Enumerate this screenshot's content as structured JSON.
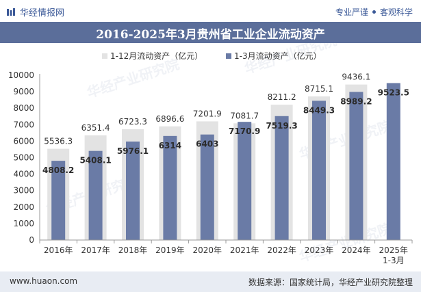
{
  "header": {
    "brand": "华经情报网",
    "tag1": "专业严谨",
    "tag2": "客观科学"
  },
  "watermark": "华经产业研究院",
  "footer": {
    "website": "www.huaon.com",
    "source": "数据来源：国家统计局，华经产业研究院整理"
  },
  "colors": {
    "title_bg": "#5b6e9a",
    "series1": "#e3e3e3",
    "series2": "#6a7ba6",
    "footer_bg": "#e8ecf3"
  },
  "chart_data": {
    "type": "bar",
    "title": "2016-2025年3月贵州省工业企业流动资产",
    "categories": [
      "2016年",
      "2017年",
      "2018年",
      "2019年",
      "2020年",
      "2021年",
      "2022年",
      "2023年",
      "2024年",
      "2025年\n1-3月"
    ],
    "series": [
      {
        "name": "1-12月流动资产（亿元）",
        "values": [
          5536.3,
          6351.4,
          6723.3,
          6896.6,
          7201.9,
          7081.7,
          8211.2,
          8715.1,
          9436.1,
          null
        ]
      },
      {
        "name": "1-3月流动资产（亿元）",
        "values": [
          4808.2,
          5408.1,
          5976.1,
          6314,
          6403,
          7170.9,
          7519.3,
          8449.3,
          8989.2,
          9523.5
        ]
      }
    ],
    "labels1": [
      "5536.3",
      "6351.4",
      "6723.3",
      "6896.6",
      "7201.9",
      "7081.7",
      "8211.2",
      "8715.1",
      "9436.1",
      ""
    ],
    "labels2": [
      "4808.2",
      "5408.1",
      "5976.1",
      "6314",
      "6403",
      "7170.9",
      "7519.3",
      "8449.3",
      "8989.2",
      "9523.5"
    ],
    "ylim": [
      0,
      10000
    ],
    "yticks": [
      "0",
      "1000",
      "2000",
      "3000",
      "4000",
      "5000",
      "6000",
      "7000",
      "8000",
      "9000",
      "10000"
    ],
    "legend_position": "top",
    "grid": false
  }
}
